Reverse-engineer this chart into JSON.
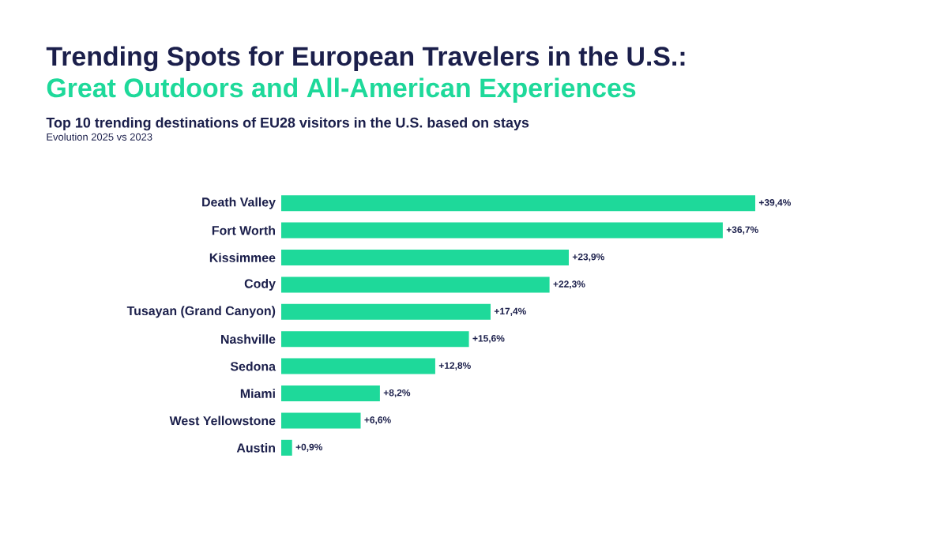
{
  "chart_data": {
    "type": "bar",
    "orientation": "horizontal",
    "title": "Trending Spots for European Travelers in the U.S.:",
    "subtitle": "Great Outdoors and All-American Experiences",
    "annotations": [
      "Top 10 trending destinations of EU28 visitors in the U.S. based on stays",
      "Evolution 2025 vs 2023"
    ],
    "categories": [
      "Death Valley",
      "Fort Worth",
      "Kissimmee",
      "Cody",
      "Tusayan (Grand Canyon)",
      "Nashville",
      "Sedona",
      "Miami",
      "West Yellowstone",
      "Austin"
    ],
    "values": [
      39.4,
      36.7,
      23.9,
      22.3,
      17.4,
      15.6,
      12.8,
      8.2,
      6.6,
      0.9
    ],
    "value_labels": [
      "+39,4%",
      "+36,7%",
      "+23,9%",
      "+22,3%",
      "+17,4%",
      "+15,6%",
      "+12,8%",
      "+8,2%",
      "+6,6%",
      "+0,9%"
    ],
    "color": "#1ed99a"
  }
}
